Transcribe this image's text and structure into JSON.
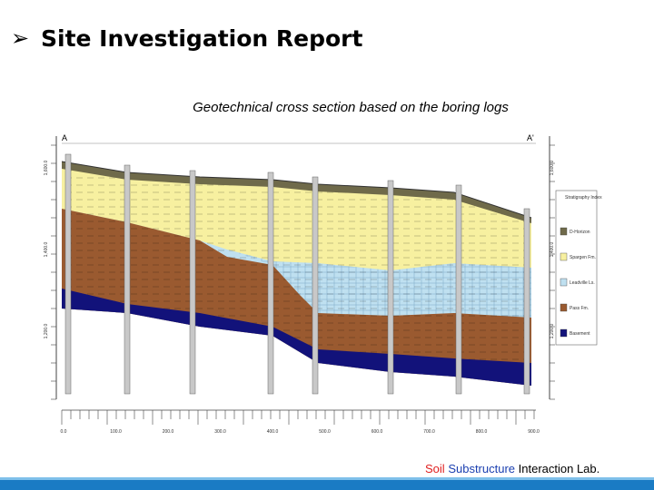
{
  "header": {
    "title": "Site Investigation Report"
  },
  "figure": {
    "caption": "Geotechnical cross section based on the boring logs",
    "labels": [
      "A",
      "A'"
    ],
    "x_labels": [
      "0.0",
      "100.0",
      "200.0",
      "300.0",
      "400.0",
      "500.0",
      "600.0",
      "700.0",
      "800.0",
      "900.0"
    ],
    "y_labels_left": [
      "1,600.0",
      "1,400.0",
      "1,200.0"
    ],
    "y_labels_right": [
      "1,600.0",
      "1,400.0",
      "1,200.0"
    ]
  },
  "legend": {
    "title": "Stratigraphy Index",
    "items": [
      "D-Horizon",
      "Spargen Fm.",
      "Leadville Ls.",
      "Pass Fm.",
      "Basement"
    ]
  },
  "footer": {
    "soil": "Soil",
    "substructure": "Substructure",
    "rest": "Interaction Lab."
  }
}
